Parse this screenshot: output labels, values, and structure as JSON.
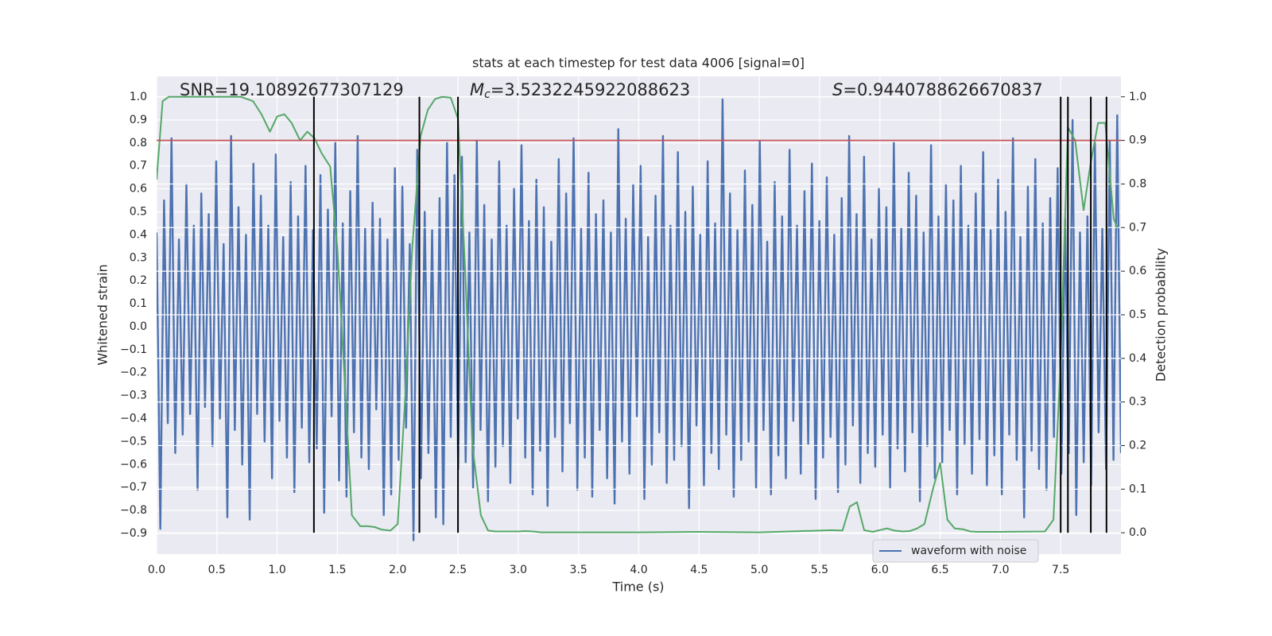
{
  "chart_data": {
    "type": "line",
    "title": "stats at each timestep for test data 4006 [signal=0]",
    "x_label": "Time (s)",
    "y_label": "Whitened strain",
    "y2_label": "Detection probability",
    "annotations": [
      {
        "text": "SNR=19.10892677307129"
      },
      {
        "symbol": "M",
        "sub": "c",
        "text": "=3.5232245922088623"
      },
      {
        "symbol": "S",
        "text": "=0.9440788626670837"
      }
    ],
    "xlim": [
      0,
      8
    ],
    "xticks": [
      {
        "value": 0,
        "label": "0.0"
      },
      0.5,
      {
        "value": 1,
        "label": "1.0"
      },
      1.5,
      {
        "value": 2,
        "label": "2.0"
      },
      2.5,
      {
        "value": 3,
        "label": "3.0"
      },
      3.5,
      {
        "value": 4,
        "label": "4.0"
      },
      4.5,
      {
        "value": 5,
        "label": "5.0"
      },
      5.5,
      {
        "value": 6,
        "label": "6.0"
      },
      6.5,
      {
        "value": 7,
        "label": "7.0"
      },
      7.5
    ],
    "ylim": [
      -0.99,
      1.09
    ],
    "yticks": [
      {
        "value": -0.9,
        "label": "−0.9"
      },
      {
        "value": -0.8,
        "label": "−0.8"
      },
      {
        "value": -0.7,
        "label": "−0.7"
      },
      {
        "value": -0.6,
        "label": "−0.6"
      },
      {
        "value": -0.5,
        "label": "−0.5"
      },
      {
        "value": -0.4,
        "label": "−0.4"
      },
      {
        "value": -0.3,
        "label": "−0.3"
      },
      {
        "value": -0.2,
        "label": "−0.2"
      },
      {
        "value": -0.1,
        "label": "−0.1"
      },
      {
        "value": 0,
        "label": "0.0"
      },
      0.1,
      0.2,
      0.3,
      0.4,
      0.5,
      0.6,
      0.7,
      0.8,
      0.9,
      {
        "value": 1,
        "label": "1.0"
      }
    ],
    "y2lim": [
      -0.049,
      1.047
    ],
    "y2ticks": [
      {
        "value": 0,
        "label": "0.0"
      },
      0.1,
      0.2,
      0.3,
      0.4,
      0.5,
      0.6,
      0.7,
      0.8,
      0.9,
      {
        "value": 1,
        "label": "1.0"
      }
    ],
    "grid": true,
    "legend": "lower right",
    "series": [
      {
        "name": "waveform with noise",
        "color": "#4c72b0",
        "axis": "y",
        "values": [
          0.41,
          -0.88,
          0.55,
          -0.42,
          0.82,
          -0.55,
          0.38,
          -0.47,
          0.62,
          -0.38,
          0.44,
          -0.71,
          0.58,
          -0.35,
          0.49,
          -0.52,
          0.72,
          -0.4,
          0.36,
          -0.83,
          0.83,
          -0.45,
          0.52,
          -0.6,
          0.4,
          -0.84,
          0.71,
          -0.38,
          0.57,
          -0.5,
          0.44,
          -0.66,
          0.75,
          -0.41,
          0.39,
          -0.57,
          0.63,
          -0.72,
          0.48,
          -0.44,
          0.7,
          -0.59,
          0.42,
          -0.53,
          0.66,
          -0.81,
          0.51,
          -0.39,
          0.8,
          -0.67,
          0.45,
          -0.74,
          0.59,
          -0.46,
          0.83,
          -0.57,
          0.43,
          -0.62,
          0.54,
          -0.36,
          0.47,
          -0.82,
          0.38,
          -0.73,
          0.69,
          -0.58,
          0.61,
          -0.44,
          0.36,
          -0.93,
          0.77,
          -0.66,
          0.5,
          -0.55,
          0.42,
          -0.83,
          0.56,
          -0.86,
          0.8,
          -0.48,
          0.66,
          -0.62,
          0.74,
          -0.59,
          0.41,
          -0.7,
          0.81,
          -0.45,
          0.53,
          -0.76,
          0.38,
          -0.61,
          0.72,
          -0.52,
          0.44,
          -0.68,
          0.6,
          -0.4,
          0.79,
          -0.57,
          0.46,
          -0.73,
          0.64,
          -0.54,
          0.52,
          -0.78,
          0.37,
          -0.48,
          0.73,
          -0.63,
          0.58,
          -0.42,
          0.82,
          -0.71,
          0.43,
          -0.57,
          0.67,
          -0.74,
          0.49,
          -0.45,
          0.55,
          -0.66,
          0.41,
          -0.77,
          0.86,
          -0.5,
          0.47,
          -0.64,
          0.62,
          -0.39,
          0.7,
          -0.75,
          0.39,
          -0.6,
          0.57,
          -0.46,
          0.83,
          -0.68,
          0.44,
          -0.58,
          0.76,
          -0.52,
          0.5,
          -0.79,
          0.61,
          -0.43,
          0.4,
          -0.69,
          0.72,
          -0.55,
          0.45,
          -0.62,
          0.99,
          -0.47,
          0.58,
          -0.74,
          0.42,
          -0.58,
          0.68,
          -0.5,
          0.53,
          -0.7,
          0.81,
          -0.45,
          0.37,
          -0.73,
          0.63,
          -0.56,
          0.48,
          -0.66,
          0.77,
          -0.41,
          0.44,
          -0.64,
          0.59,
          -0.51,
          0.71,
          -0.75,
          0.46,
          -0.57,
          0.65,
          -0.48,
          0.4,
          -0.72,
          0.56,
          -0.6,
          0.83,
          -0.43,
          0.49,
          -0.68,
          0.74,
          -0.55,
          0.38,
          -0.61,
          0.6,
          -0.47,
          0.52,
          -0.7,
          0.8,
          -0.53,
          0.43,
          -0.63,
          0.67,
          -0.46,
          0.57,
          -0.76,
          0.41,
          -0.52,
          0.79,
          -0.66,
          0.48,
          -0.59,
          0.62,
          -0.45,
          0.55,
          -0.73,
          0.7,
          -0.51,
          0.44,
          -0.64,
          0.58,
          -0.49,
          0.76,
          -0.69,
          0.42,
          -0.56,
          0.64,
          -0.73,
          0.5,
          -0.47,
          0.82,
          -0.58,
          0.39,
          -0.83,
          0.61,
          -0.54,
          0.73,
          -0.62,
          0.45,
          -0.71,
          0.56,
          -0.48,
          0.69,
          -0.64,
          0.47,
          -0.55,
          0.9,
          -0.82,
          0.41,
          -0.59,
          0.48,
          -0.69,
          0.8,
          -0.46,
          0.43,
          -0.62,
          0.81,
          -0.58,
          0.92,
          -0.55
        ]
      },
      {
        "color": "#55a868",
        "axis": "y2",
        "x": [
          0,
          0.05,
          0.1,
          0.2,
          0.3,
          0.4,
          0.5,
          0.6,
          0.7,
          0.8,
          0.87,
          0.94,
          1.0,
          1.06,
          1.12,
          1.19,
          1.25,
          1.31,
          1.37,
          1.44,
          1.5,
          1.56,
          1.62,
          1.69,
          1.75,
          1.81,
          1.87,
          1.94,
          2.0,
          2.06,
          2.12,
          2.19,
          2.25,
          2.31,
          2.37,
          2.44,
          2.5,
          2.56,
          2.62,
          2.69,
          2.75,
          2.81,
          3.0,
          3.06,
          3.12,
          3.19,
          3.5,
          4.0,
          4.5,
          5.0,
          5.5,
          5.6,
          5.69,
          5.75,
          5.81,
          5.87,
          5.94,
          6.0,
          6.06,
          6.12,
          6.19,
          6.25,
          6.31,
          6.37,
          6.44,
          6.5,
          6.56,
          6.62,
          6.69,
          6.75,
          6.81,
          7.0,
          7.37,
          7.44,
          7.5,
          7.56,
          7.62,
          7.69,
          7.75,
          7.81,
          7.87,
          7.94,
          7.97
        ],
        "values": [
          0.81,
          0.99,
          1.0,
          1.0,
          1.0,
          1.0,
          1.0,
          1.0,
          1.0,
          0.99,
          0.96,
          0.92,
          0.955,
          0.96,
          0.94,
          0.9,
          0.92,
          0.905,
          0.87,
          0.84,
          0.65,
          0.35,
          0.04,
          0.015,
          0.015,
          0.013,
          0.007,
          0.005,
          0.02,
          0.3,
          0.65,
          0.91,
          0.97,
          0.995,
          1.0,
          0.998,
          0.95,
          0.6,
          0.2,
          0.04,
          0.005,
          0.003,
          0.003,
          0.004,
          0.003,
          0.001,
          0.001,
          0.001,
          0.002,
          0.001,
          0.005,
          0.006,
          0.005,
          0.06,
          0.07,
          0.006,
          0.002,
          0.006,
          0.01,
          0.005,
          0.003,
          0.004,
          0.01,
          0.02,
          0.1,
          0.16,
          0.03,
          0.01,
          0.008,
          0.003,
          0.002,
          0.002,
          0.003,
          0.03,
          0.4,
          0.93,
          0.9,
          0.74,
          0.85,
          0.94,
          0.94,
          0.72,
          0.7
        ]
      }
    ],
    "threshold": {
      "value": 0.9,
      "axis": "y2",
      "color": "#c44e52"
    },
    "vlines": {
      "x": [
        1.305,
        2.18,
        2.5,
        7.5,
        7.56,
        7.75,
        7.88
      ],
      "from": 0,
      "to": 1,
      "axis": "y2",
      "color": "#000000"
    }
  }
}
